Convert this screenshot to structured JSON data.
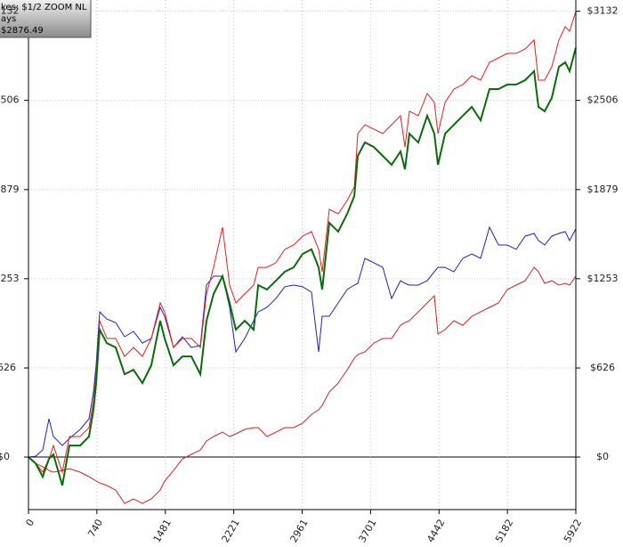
{
  "chart_data": {
    "type": "line",
    "legend_lines": [
      "kes: $1/2 ZOOM NL",
      "ays",
      "$2876.49"
    ],
    "x": [
      0,
      77,
      154,
      221,
      270,
      366,
      443,
      559,
      655,
      703,
      732,
      770,
      847,
      944,
      1040,
      1136,
      1233,
      1329,
      1425,
      1473,
      1570,
      1666,
      1762,
      1859,
      1926,
      2003,
      2099,
      2176,
      2244,
      2340,
      2436,
      2485,
      2581,
      2677,
      2773,
      2870,
      2966,
      3062,
      3139,
      3178,
      3255,
      3351,
      3448,
      3525,
      3563,
      3640,
      3736,
      3833,
      3929,
      4025,
      4073,
      4121,
      4218,
      4314,
      4391,
      4430,
      4507,
      4603,
      4699,
      4796,
      4892,
      4988,
      5085,
      5181,
      5277,
      5373,
      5470,
      5518,
      5585,
      5662,
      5739,
      5807,
      5855,
      5922
    ],
    "series": [
      {
        "color": "#2222aa",
        "values": [
          0,
          6,
          50,
          269,
          144,
          81,
          131,
          194,
          269,
          457,
          645,
          1020,
          970,
          945,
          845,
          883,
          801,
          833,
          1052,
          989,
          770,
          845,
          770,
          783,
          1208,
          1271,
          1271,
          1052,
          739,
          833,
          958,
          1020,
          1052,
          1114,
          1196,
          1208,
          1196,
          1158,
          739,
          989,
          989,
          1083,
          1177,
          1208,
          1221,
          1396,
          1365,
          1333,
          1114,
          1239,
          1221,
          1208,
          1208,
          1239,
          1302,
          1333,
          1333,
          1302,
          1396,
          1427,
          1396,
          1615,
          1490,
          1490,
          1459,
          1552,
          1571,
          1521,
          1490,
          1552,
          1571,
          1584,
          1521,
          1603
        ]
      },
      {
        "color": "#cc2222",
        "values": [
          0,
          -44,
          -69,
          -94,
          -106,
          -94,
          -81,
          -106,
          -138,
          -157,
          -169,
          -182,
          -200,
          -232,
          -326,
          -294,
          -326,
          -294,
          -232,
          -169,
          -94,
          -13,
          19,
          50,
          113,
          144,
          175,
          144,
          163,
          194,
          207,
          207,
          144,
          175,
          207,
          207,
          238,
          300,
          332,
          363,
          457,
          520,
          613,
          695,
          720,
          739,
          801,
          833,
          833,
          926,
          945,
          958,
          1020,
          1083,
          1133,
          864,
          895,
          958,
          926,
          989,
          1020,
          1052,
          1083,
          1177,
          1208,
          1239,
          1333,
          1302,
          1221,
          1239,
          1208,
          1221,
          1208,
          1271
        ]
      },
      {
        "color": "#dd2222",
        "values": [
          0,
          -44,
          -106,
          -13,
          81,
          -106,
          144,
          144,
          207,
          394,
          582,
          958,
          833,
          833,
          707,
          770,
          707,
          833,
          1083,
          1020,
          770,
          833,
          833,
          770,
          1146,
          1333,
          1615,
          1208,
          1083,
          1146,
          1208,
          1333,
          1333,
          1365,
          1459,
          1490,
          1552,
          1584,
          1459,
          1302,
          1740,
          1709,
          1803,
          1897,
          2272,
          2335,
          2304,
          2272,
          2335,
          2398,
          2178,
          2429,
          2398,
          2554,
          2491,
          2272,
          2491,
          2585,
          2617,
          2679,
          2648,
          2773,
          2804,
          2836,
          2836,
          2867,
          2930,
          2648,
          2648,
          2742,
          2930,
          3024,
          2992,
          3130
        ]
      },
      {
        "color": "#0b6b0b",
        "values": [
          0,
          -44,
          -138,
          -13,
          19,
          -200,
          81,
          81,
          144,
          332,
          520,
          895,
          801,
          770,
          582,
          613,
          520,
          645,
          958,
          833,
          645,
          707,
          707,
          582,
          958,
          1146,
          1271,
          1083,
          895,
          958,
          895,
          1208,
          1177,
          1239,
          1302,
          1333,
          1427,
          1459,
          1333,
          1177,
          1646,
          1584,
          1709,
          1834,
          2116,
          2210,
          2178,
          2116,
          2053,
          2147,
          2022,
          2272,
          2210,
          2398,
          2272,
          2053,
          2272,
          2335,
          2398,
          2460,
          2366,
          2585,
          2585,
          2617,
          2617,
          2648,
          2711,
          2460,
          2429,
          2523,
          2742,
          2773,
          2711,
          2876
        ]
      }
    ],
    "xlim": [
      0,
      5922
    ],
    "ylim": [
      -369,
      3211
    ],
    "xticks": [
      0,
      740,
      1481,
      2221,
      2961,
      3701,
      4442,
      5182,
      5922
    ],
    "yticks": [
      {
        "value": 0,
        "label": "$0"
      },
      {
        "value": 626,
        "label": "$626"
      },
      {
        "value": 1253,
        "label": "$1253"
      },
      {
        "value": 1879,
        "label": "$1879"
      },
      {
        "value": 2506,
        "label": "$2506"
      },
      {
        "value": 3132,
        "label": "$3132"
      }
    ],
    "grid": true
  }
}
